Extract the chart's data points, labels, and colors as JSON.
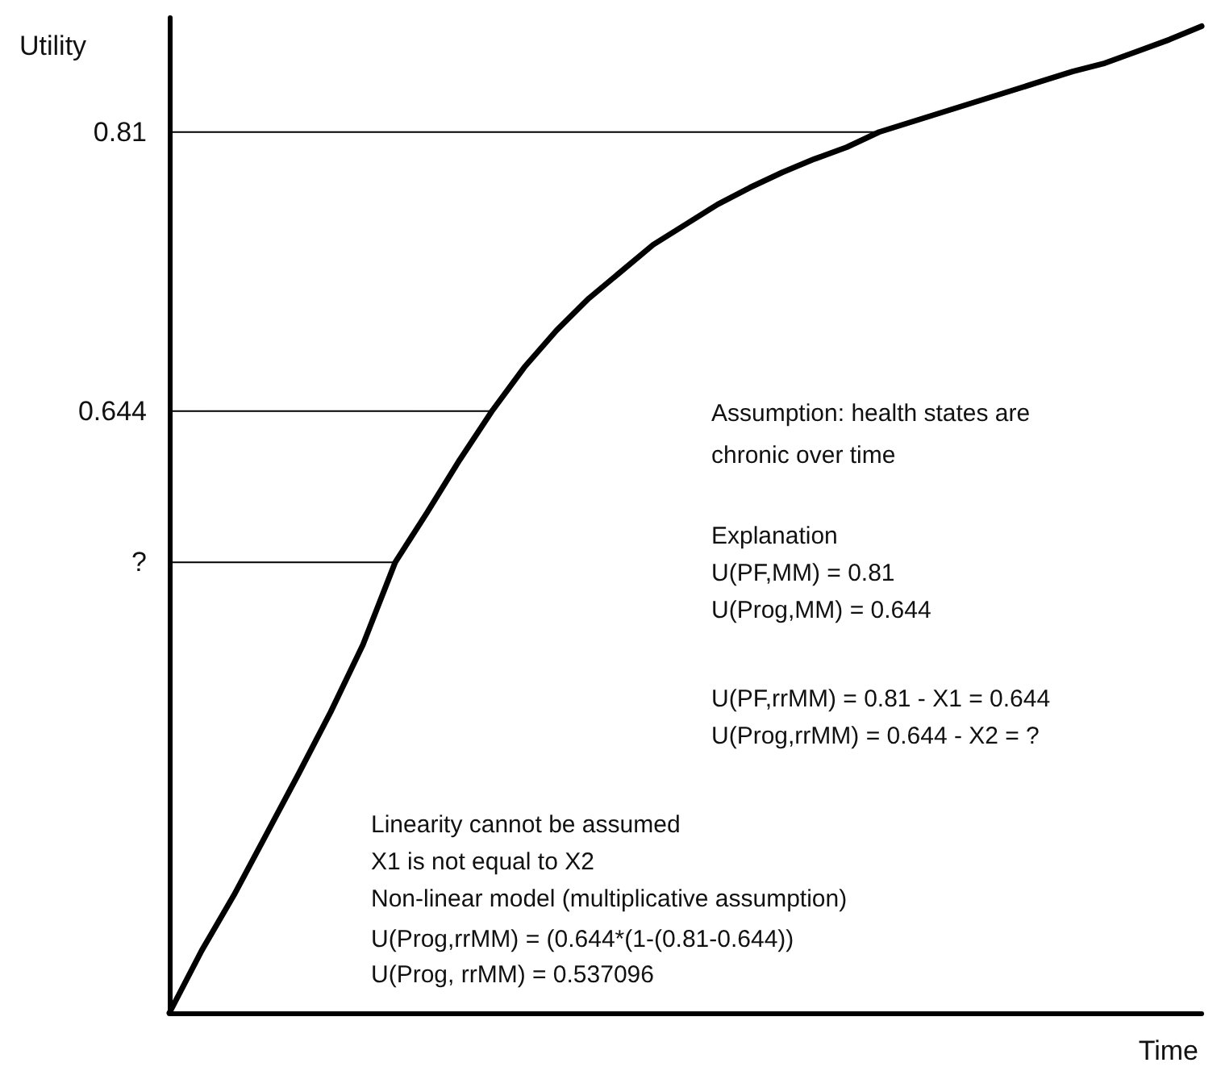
{
  "chart_data": {
    "type": "line",
    "ylabel": "Utility",
    "xlabel": "Time",
    "categories": [
      null,
      null,
      null,
      null,
      null,
      null,
      null,
      null,
      null,
      null,
      null,
      null,
      null,
      null,
      null,
      null,
      null,
      null,
      null,
      null,
      null,
      null,
      null,
      null,
      null,
      null,
      null,
      null,
      null,
      null,
      null,
      null,
      null
    ],
    "series": [
      {
        "color": "#000000",
        "values": [
          0.286,
          0.323,
          0.356,
          0.392,
          0.428,
          0.465,
          0.505,
          0.554,
          0.584,
          0.615,
          0.644,
          0.67,
          0.692,
          0.711,
          0.727,
          0.743,
          0.755,
          0.767,
          0.777,
          0.786,
          0.794,
          0.801,
          0.81,
          0.816,
          0.822,
          0.828,
          0.834,
          0.84,
          0.846,
          0.851,
          0.858,
          0.865,
          0.873
        ]
      },
      {
        "color": "#000000",
        "line_style": "solid",
        "values": [
          0.81,
          0.81,
          0.81,
          0.81,
          0.81,
          0.81,
          0.81,
          0.81,
          0.81,
          0.81,
          0.81,
          0.81,
          0.81,
          0.81,
          0.81,
          0.81,
          0.81,
          0.81,
          0.81,
          0.81,
          0.81,
          0.81,
          0.81,
          null,
          null,
          null,
          null,
          null,
          null,
          null,
          null,
          null,
          null
        ]
      },
      {
        "color": "#000000",
        "line_style": "solid",
        "values": [
          0.644,
          0.644,
          0.644,
          0.644,
          0.644,
          0.644,
          0.644,
          0.644,
          0.644,
          0.644,
          0.644,
          null,
          null,
          null,
          null,
          null,
          null,
          null,
          null,
          null,
          null,
          null,
          null,
          null,
          null,
          null,
          null,
          null,
          null,
          null,
          null,
          null,
          null
        ]
      },
      {
        "color": "#000000",
        "line_style": "solid",
        "values": [
          0.554,
          0.554,
          0.554,
          0.554,
          0.554,
          0.554,
          0.554,
          0.554,
          null,
          null,
          null,
          null,
          null,
          null,
          null,
          null,
          null,
          null,
          null,
          null,
          null,
          null,
          null,
          null,
          null,
          null,
          null,
          null,
          null,
          null,
          null,
          null,
          null
        ]
      }
    ],
    "ylim": [
      0.286,
      0.878
    ],
    "yticks": [
      {
        "value": 0.554,
        "label": "?"
      },
      0.644,
      0.81
    ],
    "tick_labels": "y",
    "grid": false,
    "marker": "none",
    "annotations": [
      "Assumption: health states are",
      "chronic over time",
      "Explanation",
      "U(PF,MM) = 0.81",
      "U(Prog,MM) = 0.644",
      "U(PF,rrMM) = 0.81 - X1 = 0.644",
      "U(Prog,rrMM) = 0.644 - X2 = ?",
      "Linearity cannot be assumed",
      "X1 is not equal to X2",
      "Non-linear model (multiplicative assumption)",
      "U(Prog,rrMM) = (0.644*(1-(0.81-0.644))",
      "U(Prog, rrMM) = 0.537096"
    ]
  }
}
